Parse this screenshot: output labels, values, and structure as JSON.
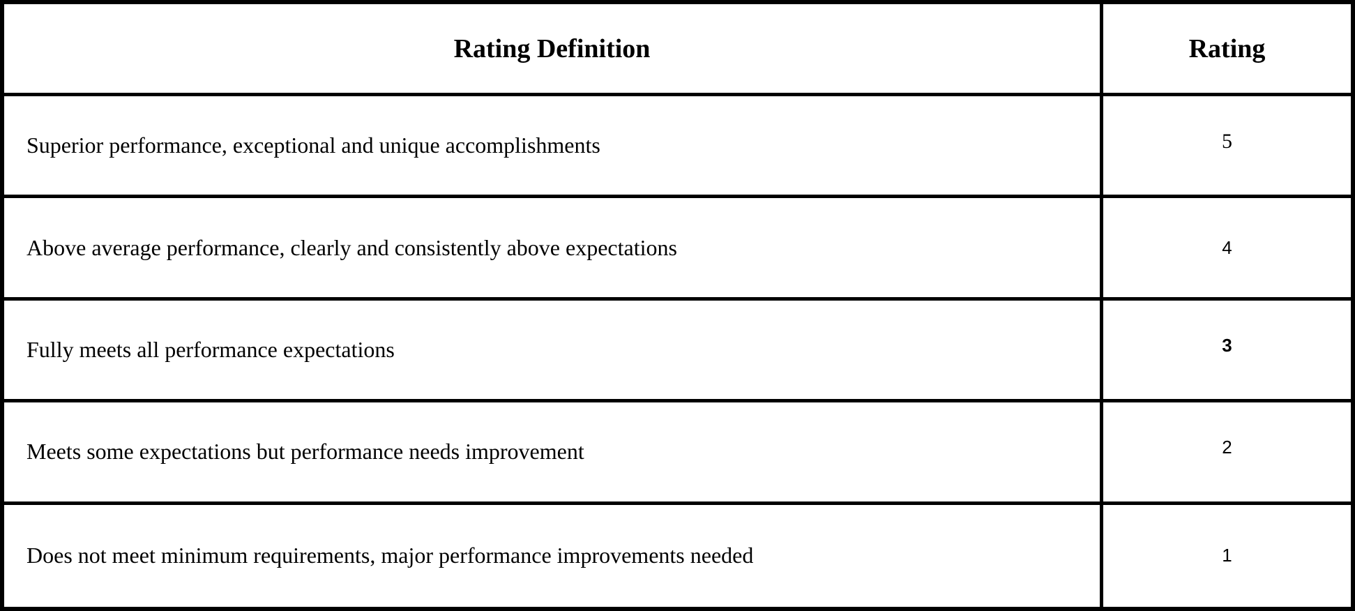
{
  "table": {
    "headers": {
      "definition": "Rating Definition",
      "rating": "Rating"
    },
    "rows": [
      {
        "definition": "Superior performance, exceptional and unique accomplishments",
        "rating": "5"
      },
      {
        "definition": "Above average performance, clearly and consistently above expectations",
        "rating": "4"
      },
      {
        "definition": "Fully meets all performance expectations",
        "rating": "3"
      },
      {
        "definition": "Meets some expectations but performance needs improvement",
        "rating": "2"
      },
      {
        "definition": "Does not meet minimum requirements, major performance improvements needed",
        "rating": "1"
      }
    ]
  }
}
